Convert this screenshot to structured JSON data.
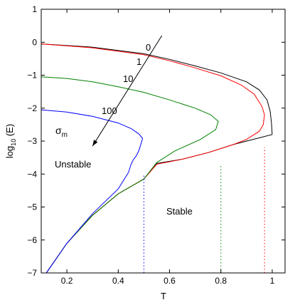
{
  "chart_data": {
    "type": "line",
    "xlabel": "T",
    "ylabel_main": "log",
    "ylabel_sub": "10",
    "ylabel_tail": " (E)",
    "xlim": [
      0.1,
      1.05
    ],
    "ylim": [
      -7,
      1
    ],
    "xticks": [
      0.2,
      0.4,
      0.6,
      0.8,
      1
    ],
    "xtick_labels": [
      "0.2",
      "0.4",
      "0.6",
      "0.8",
      "1"
    ],
    "yticks": [
      1,
      0,
      -1,
      -2,
      -3,
      -4,
      -5,
      -6,
      -7
    ],
    "ytick_labels": [
      "1",
      "0",
      "−1",
      "−2",
      "−3",
      "−4",
      "−5",
      "−6",
      "−7"
    ],
    "grid": false,
    "series": [
      {
        "label": "0",
        "color": "#000000",
        "upper": [
          [
            0.1,
            -0.05
          ],
          [
            0.3,
            -0.15
          ],
          [
            0.5,
            -0.35
          ],
          [
            0.6,
            -0.52
          ],
          [
            0.7,
            -0.72
          ],
          [
            0.8,
            -0.93
          ],
          [
            0.9,
            -1.2
          ],
          [
            0.95,
            -1.45
          ],
          [
            0.98,
            -1.75
          ],
          [
            0.992,
            -2.1
          ],
          [
            0.997,
            -2.45
          ],
          [
            1.0,
            -2.8
          ]
        ],
        "lower": [
          [
            1.0,
            -2.8
          ],
          [
            0.95,
            -2.9
          ],
          [
            0.85,
            -3.1
          ],
          [
            0.75,
            -3.35
          ],
          [
            0.65,
            -3.55
          ],
          [
            0.55,
            -3.68
          ],
          [
            0.5,
            -4.15
          ],
          [
            0.4,
            -4.6
          ],
          [
            0.3,
            -5.25
          ],
          [
            0.2,
            -6.1
          ],
          [
            0.12,
            -7
          ]
        ],
        "vline_x": null
      },
      {
        "label": "1",
        "color": "#ff0000",
        "upper": [
          [
            0.1,
            -0.05
          ],
          [
            0.3,
            -0.17
          ],
          [
            0.5,
            -0.38
          ],
          [
            0.6,
            -0.56
          ],
          [
            0.7,
            -0.78
          ],
          [
            0.8,
            -1.02
          ],
          [
            0.88,
            -1.3
          ],
          [
            0.93,
            -1.58
          ],
          [
            0.96,
            -1.95
          ],
          [
            0.97,
            -2.2
          ],
          [
            0.965,
            -2.5
          ],
          [
            0.95,
            -2.7
          ],
          [
            0.9,
            -2.95
          ],
          [
            0.85,
            -3.1
          ]
        ],
        "lower": [
          [
            0.85,
            -3.1
          ],
          [
            0.75,
            -3.35
          ],
          [
            0.65,
            -3.55
          ],
          [
            0.55,
            -3.7
          ],
          [
            0.5,
            -4.15
          ],
          [
            0.4,
            -4.6
          ],
          [
            0.3,
            -5.25
          ],
          [
            0.2,
            -6.1
          ],
          [
            0.12,
            -7
          ]
        ],
        "vline_x": 0.97
      },
      {
        "label": "10",
        "color": "#008000",
        "upper": [
          [
            0.1,
            -1.05
          ],
          [
            0.2,
            -1.1
          ],
          [
            0.3,
            -1.2
          ],
          [
            0.4,
            -1.35
          ],
          [
            0.5,
            -1.52
          ],
          [
            0.6,
            -1.75
          ],
          [
            0.7,
            -2.0
          ],
          [
            0.76,
            -2.2
          ],
          [
            0.79,
            -2.4
          ],
          [
            0.78,
            -2.65
          ],
          [
            0.72,
            -2.95
          ],
          [
            0.62,
            -3.3
          ],
          [
            0.55,
            -3.65
          ]
        ],
        "lower": [
          [
            0.55,
            -3.65
          ],
          [
            0.5,
            -4.15
          ],
          [
            0.4,
            -4.6
          ],
          [
            0.3,
            -5.25
          ],
          [
            0.2,
            -6.1
          ],
          [
            0.12,
            -7
          ]
        ],
        "vline_x": 0.8
      },
      {
        "label": "100",
        "color": "#0000ff",
        "upper": [
          [
            0.1,
            -2.05
          ],
          [
            0.2,
            -2.12
          ],
          [
            0.3,
            -2.25
          ],
          [
            0.4,
            -2.45
          ],
          [
            0.45,
            -2.62
          ],
          [
            0.48,
            -2.78
          ],
          [
            0.495,
            -2.92
          ],
          [
            0.49,
            -3.05
          ],
          [
            0.48,
            -3.3
          ],
          [
            0.47,
            -3.45
          ],
          [
            0.46,
            -3.55
          ],
          [
            0.45,
            -3.7
          ],
          [
            0.44,
            -3.95
          ]
        ],
        "lower": [
          [
            0.44,
            -3.95
          ],
          [
            0.4,
            -4.45
          ],
          [
            0.3,
            -5.2
          ],
          [
            0.2,
            -6.1
          ],
          [
            0.12,
            -7
          ]
        ],
        "vline_x": 0.5
      }
    ],
    "annotations": {
      "sigma": "σ",
      "sigma_sub": "m",
      "unstable": "Unstable",
      "stable": "Stable",
      "arrow": {
        "from": [
          0.57,
          0.2
        ],
        "to": [
          0.3,
          -3.15
        ]
      }
    }
  }
}
